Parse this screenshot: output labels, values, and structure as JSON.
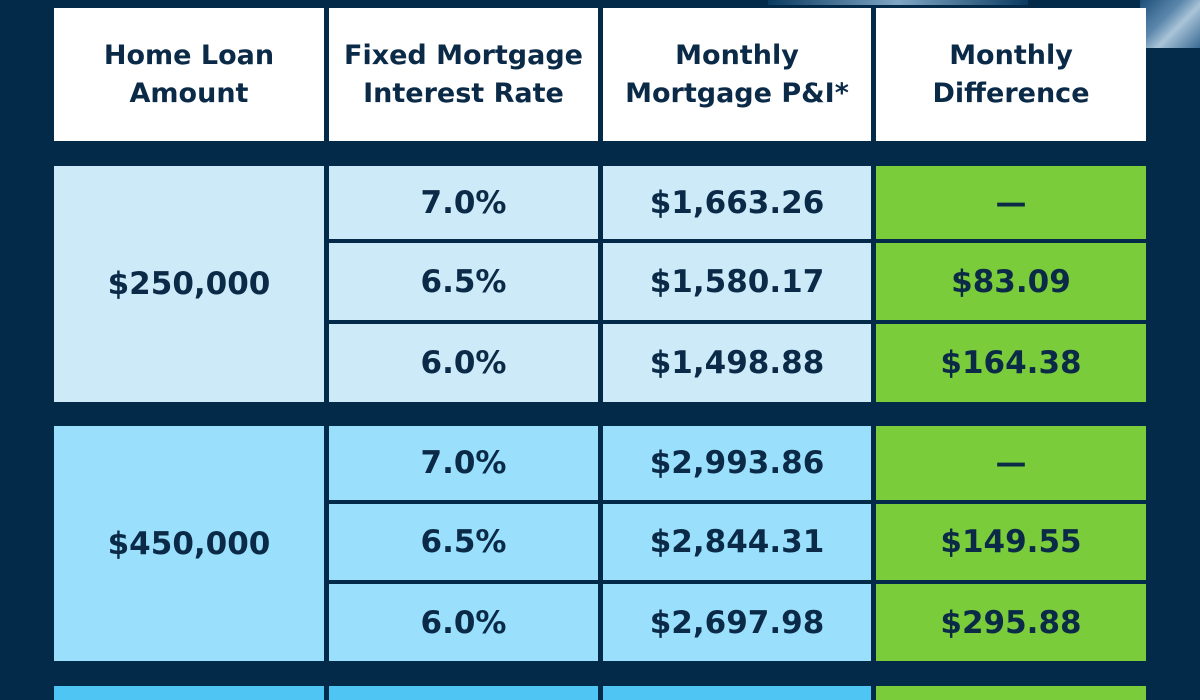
{
  "headers": {
    "loan_amount": "Home Loan\nAmount",
    "interest_rate": "Fixed Mortgage\nInterest Rate",
    "monthly_pi": "Monthly\nMortgage P&I*",
    "monthly_diff": "Monthly\nDifference"
  },
  "groups": [
    {
      "loan_amount": "$250,000",
      "rows": [
        {
          "rate": "7.0%",
          "payment": "$1,663.26",
          "difference": "—"
        },
        {
          "rate": "6.5%",
          "payment": "$1,580.17",
          "difference": "$83.09"
        },
        {
          "rate": "6.0%",
          "payment": "$1,498.88",
          "difference": "$164.38"
        }
      ]
    },
    {
      "loan_amount": "$450,000",
      "rows": [
        {
          "rate": "7.0%",
          "payment": "$2,993.86",
          "difference": "—"
        },
        {
          "rate": "6.5%",
          "payment": "$2,844.31",
          "difference": "$149.55"
        },
        {
          "rate": "6.0%",
          "payment": "$2,697.98",
          "difference": "$295.88"
        }
      ]
    }
  ],
  "colors": {
    "background": "#042a4a",
    "header_bg": "#ffffff",
    "group1_bg": "#cdeaf8",
    "group2_bg": "#9ae0fc",
    "group3_bg": "#4fc5f4",
    "difference_bg": "#7bcc3b",
    "text": "#0a2a47"
  }
}
